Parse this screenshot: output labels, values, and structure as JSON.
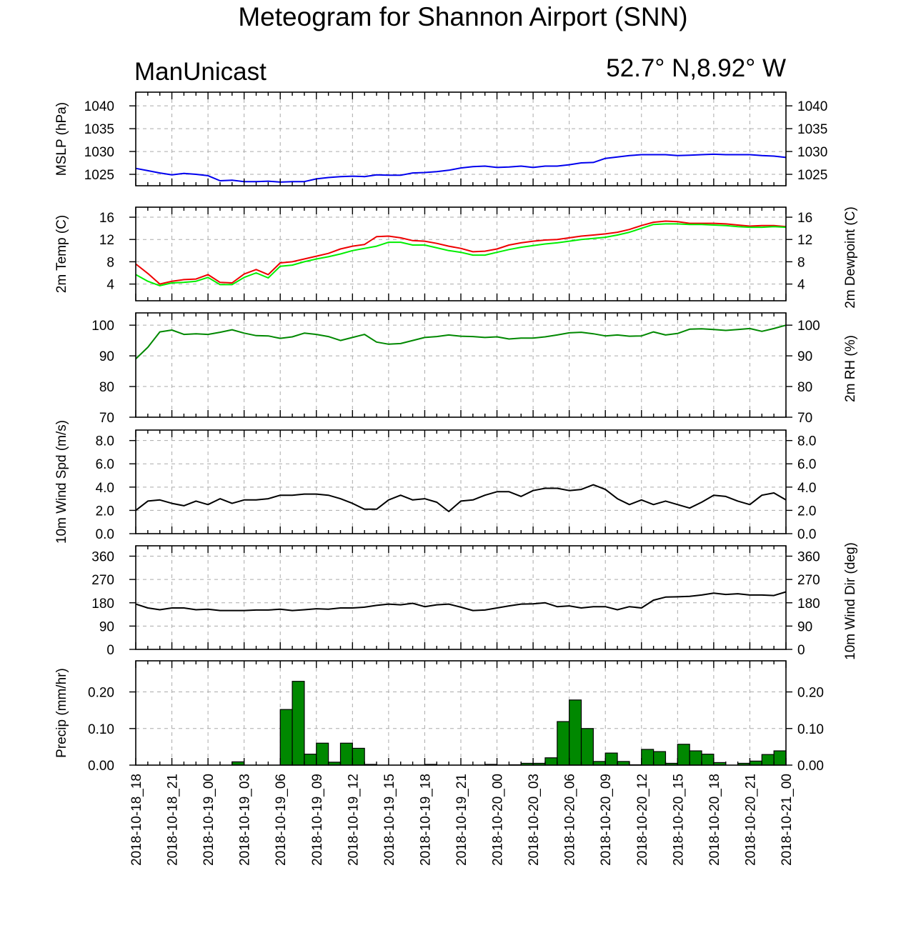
{
  "title": "Meteogram for Shannon Airport (SNN)",
  "model": "ManUnicast",
  "location": "52.7° N,8.92° W",
  "x_tick_labels": [
    "2018-10-18_18",
    "2018-10-18_21",
    "2018-10-19_00",
    "2018-10-19_03",
    "2018-10-19_06",
    "2018-10-19_09",
    "2018-10-19_12",
    "2018-10-19_15",
    "2018-10-19_18",
    "2018-10-19_21",
    "2018-10-20_00",
    "2018-10-20_03",
    "2018-10-20_06",
    "2018-10-20_09",
    "2018-10-20_12",
    "2018-10-20_15",
    "2018-10-20_18",
    "2018-10-20_21",
    "2018-10-21_00"
  ],
  "chart_data": [
    {
      "type": "line",
      "ylabel": "MSLP (hPa)",
      "ylabel_right": "",
      "yticks": [
        1025,
        1030,
        1035,
        1040
      ],
      "tick_labels": [
        "1025",
        "1030",
        "1035",
        "1040"
      ],
      "ylim": [
        1022.5,
        1043.0
      ],
      "grid": true,
      "x_unit": "hours from 2018-10-18_18",
      "series": [
        {
          "color": "#0000ee",
          "values": [
            1026.3,
            1025.8,
            1025.3,
            1024.9,
            1025.2,
            1025.0,
            1024.7,
            1023.6,
            1023.7,
            1023.4,
            1023.4,
            1023.5,
            1023.3,
            1023.4,
            1023.4,
            1024.0,
            1024.3,
            1024.5,
            1024.6,
            1024.5,
            1024.9,
            1024.8,
            1024.8,
            1025.3,
            1025.4,
            1025.6,
            1025.9,
            1026.4,
            1026.7,
            1026.8,
            1026.5,
            1026.6,
            1026.8,
            1026.5,
            1026.8,
            1026.8,
            1027.1,
            1027.5,
            1027.6,
            1028.5,
            1028.8,
            1029.1,
            1029.3,
            1029.3,
            1029.3,
            1029.1,
            1029.2,
            1029.3,
            1029.4,
            1029.3,
            1029.3,
            1029.3,
            1029.1,
            1029.0,
            1028.7
          ]
        }
      ]
    },
    {
      "type": "line",
      "ylabel": "2m Temp (C)",
      "ylabel_right": "2m Dewpoint (C)",
      "yticks": [
        4,
        8,
        12,
        16
      ],
      "tick_labels": [
        "4",
        "8",
        "12",
        "16"
      ],
      "ylim": [
        1.0,
        17.8
      ],
      "grid": true,
      "x_unit": "hours from 2018-10-18_18",
      "series": [
        {
          "color": "#ee0000",
          "values": [
            7.6,
            5.9,
            4.0,
            4.5,
            4.8,
            4.9,
            5.7,
            4.3,
            4.2,
            5.8,
            6.6,
            5.7,
            7.8,
            8.0,
            8.5,
            9.0,
            9.5,
            10.3,
            10.8,
            11.1,
            12.5,
            12.6,
            12.3,
            11.8,
            11.7,
            11.3,
            10.8,
            10.4,
            9.8,
            9.9,
            10.3,
            11.0,
            11.4,
            11.7,
            11.9,
            12.0,
            12.3,
            12.6,
            12.8,
            13.0,
            13.3,
            13.8,
            14.5,
            15.1,
            15.3,
            15.2,
            14.9,
            14.9,
            14.9,
            14.8,
            14.6,
            14.4,
            14.5,
            14.5,
            14.3
          ]
        },
        {
          "color": "#00ee00",
          "values": [
            5.7,
            4.5,
            3.7,
            4.2,
            4.3,
            4.5,
            5.2,
            3.9,
            3.9,
            5.2,
            6.0,
            5.1,
            7.2,
            7.4,
            8.0,
            8.5,
            8.9,
            9.4,
            10.0,
            10.4,
            10.8,
            11.5,
            11.5,
            11.0,
            11.0,
            10.5,
            10.0,
            9.7,
            9.2,
            9.2,
            9.7,
            10.2,
            10.6,
            10.9,
            11.2,
            11.4,
            11.7,
            12.0,
            12.2,
            12.4,
            12.8,
            13.3,
            14.0,
            14.7,
            14.8,
            14.8,
            14.7,
            14.7,
            14.6,
            14.5,
            14.3,
            14.2,
            14.2,
            14.3,
            14.2
          ]
        }
      ]
    },
    {
      "type": "line",
      "ylabel": "",
      "ylabel_right": "2m RH (%)",
      "yticks": [
        70,
        80,
        90,
        100
      ],
      "tick_labels": [
        "70",
        "80",
        "90",
        "100"
      ],
      "ylim": [
        70,
        104
      ],
      "grid": true,
      "x_unit": "hours from 2018-10-18_18",
      "series": [
        {
          "color": "#008800",
          "values": [
            89.0,
            92.8,
            97.8,
            98.4,
            97.0,
            97.2,
            97.0,
            97.7,
            98.5,
            97.4,
            96.6,
            96.5,
            95.7,
            96.2,
            97.4,
            97.0,
            96.3,
            95.0,
            96.0,
            97.0,
            94.5,
            93.8,
            94.0,
            95.0,
            96.0,
            96.3,
            96.8,
            96.4,
            96.3,
            96.0,
            96.2,
            95.5,
            95.8,
            95.8,
            96.2,
            96.8,
            97.5,
            97.7,
            97.2,
            96.5,
            96.8,
            96.4,
            96.5,
            97.8,
            96.8,
            97.3,
            98.7,
            98.8,
            98.6,
            98.3,
            98.6,
            98.9,
            98.0,
            98.9,
            100.0
          ]
        }
      ]
    },
    {
      "type": "line",
      "ylabel": "10m Wind Spd (m/s)",
      "ylabel_right": "",
      "yticks": [
        0,
        2,
        4,
        6,
        8
      ],
      "tick_labels": [
        "0.0",
        "2.0",
        "4.0",
        "6.0",
        "8.0"
      ],
      "ylim": [
        0,
        8.9
      ],
      "grid": true,
      "x_unit": "hours from 2018-10-18_18",
      "series": [
        {
          "color": "#000000",
          "values": [
            2.0,
            2.8,
            2.9,
            2.6,
            2.4,
            2.8,
            2.5,
            3.0,
            2.6,
            2.9,
            2.9,
            3.0,
            3.3,
            3.3,
            3.4,
            3.4,
            3.3,
            3.0,
            2.6,
            2.1,
            2.1,
            2.9,
            3.3,
            2.9,
            3.0,
            2.7,
            1.9,
            2.8,
            2.9,
            3.3,
            3.6,
            3.6,
            3.2,
            3.7,
            3.9,
            3.9,
            3.7,
            3.8,
            4.2,
            3.8,
            3.0,
            2.5,
            2.9,
            2.5,
            2.8,
            2.5,
            2.2,
            2.7,
            3.3,
            3.2,
            2.8,
            2.5,
            3.3,
            3.5,
            2.9
          ]
        }
      ]
    },
    {
      "type": "line",
      "ylabel": "",
      "ylabel_right": "10m Wind Dir (deg)",
      "yticks": [
        0,
        90,
        180,
        270,
        360
      ],
      "tick_labels": [
        "0",
        "90",
        "180",
        "270",
        "360"
      ],
      "ylim": [
        0,
        400
      ],
      "grid": true,
      "x_unit": "hours from 2018-10-18_18",
      "series": [
        {
          "color": "#000000",
          "values": [
            175,
            160,
            153,
            160,
            160,
            153,
            155,
            150,
            150,
            150,
            152,
            152,
            155,
            150,
            153,
            157,
            155,
            160,
            160,
            163,
            170,
            175,
            172,
            178,
            165,
            172,
            175,
            163,
            150,
            152,
            160,
            168,
            175,
            176,
            180,
            165,
            168,
            160,
            165,
            165,
            153,
            165,
            160,
            190,
            202,
            203,
            205,
            210,
            217,
            212,
            215,
            210,
            210,
            208,
            222
          ]
        }
      ]
    },
    {
      "type": "bar",
      "ylabel": "Precip (mm/hr)",
      "ylabel_right": "",
      "yticks": [
        0,
        0.1,
        0.2
      ],
      "tick_labels": [
        "0.00",
        "0.10",
        "0.20"
      ],
      "ylim": [
        0,
        0.285
      ],
      "grid": true,
      "x_unit": "hours from 2018-10-18_18",
      "bar_color": "#008800",
      "values": [
        0,
        0,
        0,
        0,
        0,
        0,
        0,
        0,
        0.009,
        0,
        0,
        0,
        0.152,
        0.229,
        0.03,
        0.06,
        0.008,
        0.06,
        0.046,
        0.002,
        0,
        0,
        0,
        0,
        0.002,
        0,
        0,
        0,
        0,
        0.002,
        0,
        0.001,
        0.005,
        0.005,
        0.02,
        0.119,
        0.178,
        0.1,
        0.01,
        0.033,
        0.01,
        0.001,
        0.043,
        0.037,
        0.005,
        0.057,
        0.039,
        0.03,
        0.007,
        0,
        0.005,
        0.011,
        0.029,
        0.039
      ]
    }
  ]
}
